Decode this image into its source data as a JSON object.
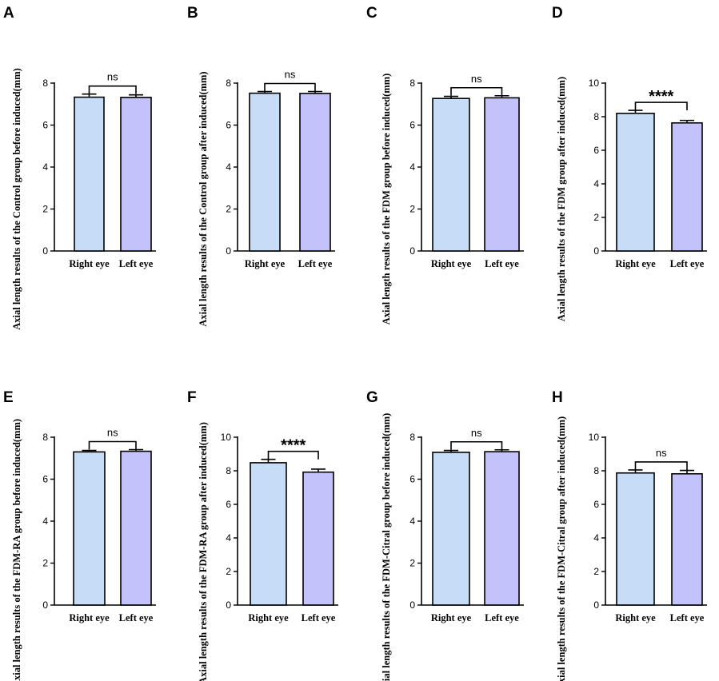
{
  "colors": {
    "right_eye": "#c6dcf7",
    "left_eye": "#c4c2fb",
    "stroke": "#000000"
  },
  "chart_data": [
    {
      "panel": "A",
      "type": "bar",
      "categories": [
        "Right eye",
        "Left eye"
      ],
      "values": [
        7.33,
        7.32
      ],
      "errors": [
        0.15,
        0.12
      ],
      "ylim": [
        0,
        8
      ],
      "yticks": [
        0,
        2,
        4,
        6,
        8
      ],
      "ylabel": "Axial length results of the Control group before induced(mm)",
      "significance": "ns"
    },
    {
      "panel": "B",
      "type": "bar",
      "categories": [
        "Right eye",
        "Left eye"
      ],
      "values": [
        7.52,
        7.51
      ],
      "errors": [
        0.08,
        0.09
      ],
      "ylim": [
        0,
        8
      ],
      "yticks": [
        0,
        2,
        4,
        6,
        8
      ],
      "ylabel": "Axial length results of the Control group after induced(mm)",
      "significance": "ns"
    },
    {
      "panel": "C",
      "type": "bar",
      "categories": [
        "Right eye",
        "Left eye"
      ],
      "values": [
        7.27,
        7.3
      ],
      "errors": [
        0.1,
        0.1
      ],
      "ylim": [
        0,
        8
      ],
      "yticks": [
        0,
        2,
        4,
        6,
        8
      ],
      "ylabel": "Axial length results of the FDM group before induced(mm)",
      "significance": "ns"
    },
    {
      "panel": "D",
      "type": "bar",
      "categories": [
        "Right eye",
        "Left eye"
      ],
      "values": [
        8.2,
        7.63
      ],
      "errors": [
        0.18,
        0.15
      ],
      "ylim": [
        0,
        10
      ],
      "yticks": [
        0,
        2,
        4,
        6,
        8,
        10
      ],
      "ylabel": "Axial length results of the FDM group after induced(mm)",
      "significance": "****"
    },
    {
      "panel": "E",
      "type": "bar",
      "categories": [
        "Right eye",
        "Left eye"
      ],
      "values": [
        7.3,
        7.33
      ],
      "errors": [
        0.07,
        0.08
      ],
      "ylim": [
        0,
        8
      ],
      "yticks": [
        0,
        2,
        4,
        6,
        8
      ],
      "ylabel": "Axial length results of the FDM-RA group before induced(mm)",
      "significance": "ns"
    },
    {
      "panel": "F",
      "type": "bar",
      "categories": [
        "Right eye",
        "Left eye"
      ],
      "values": [
        8.48,
        7.92
      ],
      "errors": [
        0.2,
        0.18
      ],
      "ylim": [
        0,
        10
      ],
      "yticks": [
        0,
        2,
        4,
        6,
        8,
        10
      ],
      "ylabel": "Axial length results of the FDM-RA group after induced(mm)",
      "significance": "****"
    },
    {
      "panel": "G",
      "type": "bar",
      "categories": [
        "Right eye",
        "Left eye"
      ],
      "values": [
        7.28,
        7.31
      ],
      "errors": [
        0.09,
        0.09
      ],
      "ylim": [
        0,
        8
      ],
      "yticks": [
        0,
        2,
        4,
        6,
        8
      ],
      "ylabel": "Axial length results of the FDM-Citral group before induced(mm)",
      "significance": "ns"
    },
    {
      "panel": "H",
      "type": "bar",
      "categories": [
        "Right eye",
        "Left eye"
      ],
      "values": [
        7.87,
        7.82
      ],
      "errors": [
        0.18,
        0.2
      ],
      "ylim": [
        0,
        10
      ],
      "yticks": [
        0,
        2,
        4,
        6,
        8,
        10
      ],
      "ylabel": "Axial length results of the FDM-Citral group after induced(mm)",
      "significance": "ns"
    }
  ]
}
